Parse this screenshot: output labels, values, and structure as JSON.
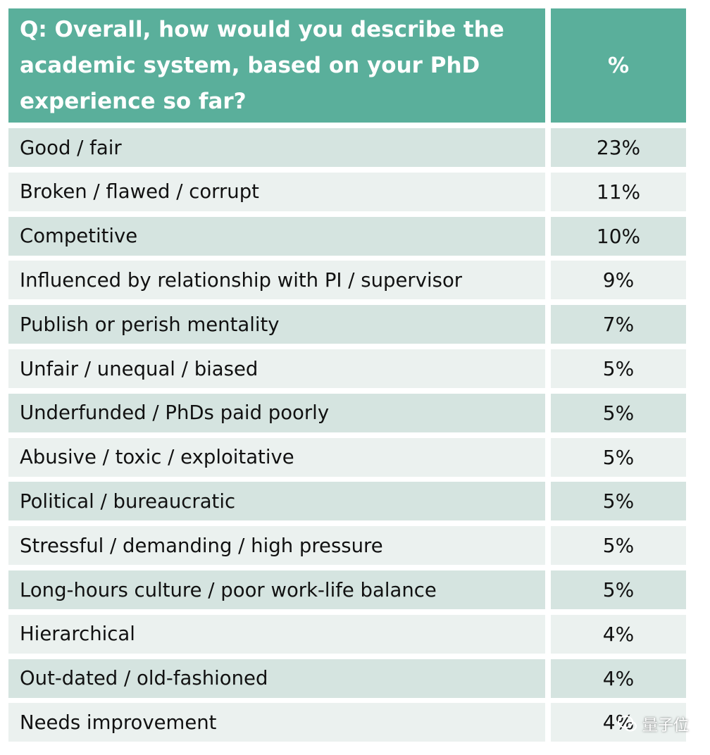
{
  "header": {
    "question": "Q: Overall, how would you describe the academic system, based on your PhD experience so far?",
    "percent_label": "%"
  },
  "chart_data": {
    "type": "table",
    "title": "Q: Overall, how would you describe the academic system, based on your PhD experience so far?",
    "columns": [
      "Q: Overall, how would you describe the academic system, based on your PhD experience so far?",
      "%"
    ],
    "categories": [
      "Good / fair",
      "Broken / flawed / corrupt",
      "Competitive",
      "Influenced by relationship with PI / supervisor",
      "Publish or perish mentality",
      "Unfair / unequal / biased",
      "Underfunded / PhDs paid poorly",
      "Abusive / toxic / exploitative",
      "Political / bureaucratic",
      "Stressful / demanding / high pressure",
      "Long-hours culture / poor work-life balance",
      "Hierarchical",
      "Out-dated / old-fashioned",
      "Needs improvement"
    ],
    "values": [
      23,
      11,
      10,
      9,
      7,
      5,
      5,
      5,
      5,
      5,
      5,
      4,
      4,
      4
    ],
    "value_labels": [
      "23%",
      "11%",
      "10%",
      "9%",
      "7%",
      "5%",
      "5%",
      "5%",
      "5%",
      "5%",
      "5%",
      "4%",
      "4%",
      "4%"
    ]
  },
  "watermark": {
    "text": "量子位",
    "icon": "wechat-icon"
  },
  "colors": {
    "header": "#5aaf9b",
    "row_dark": "#d5e4e0",
    "row_light": "#ebf1ef"
  }
}
